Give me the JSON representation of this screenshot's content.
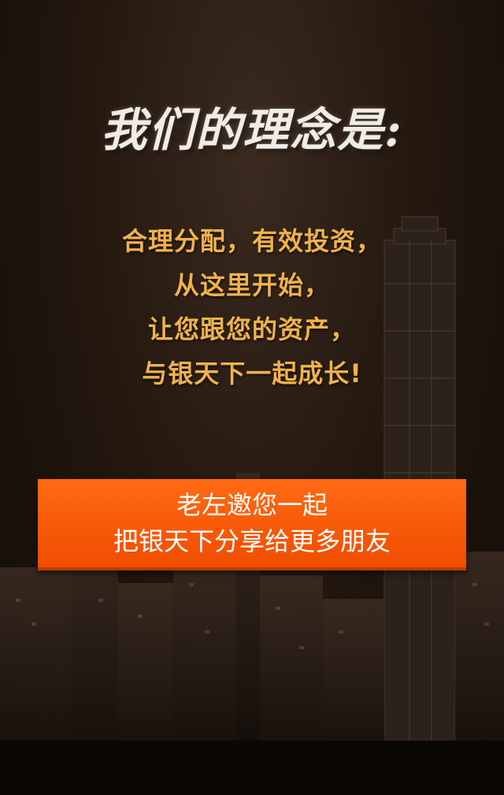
{
  "title": "我们的理念是:",
  "slogan": {
    "lines": [
      "合理分配，有效投资，",
      "从这里开始，",
      "让您跟您的资产，",
      "与银天下一起成长!"
    ]
  },
  "cta": {
    "line1": "老左邀您一起",
    "line2": "把银天下分享给更多朋友"
  },
  "colors": {
    "slogan": "#f0b24a",
    "cta_background": "#ff5a0a",
    "background": "#24180f"
  }
}
